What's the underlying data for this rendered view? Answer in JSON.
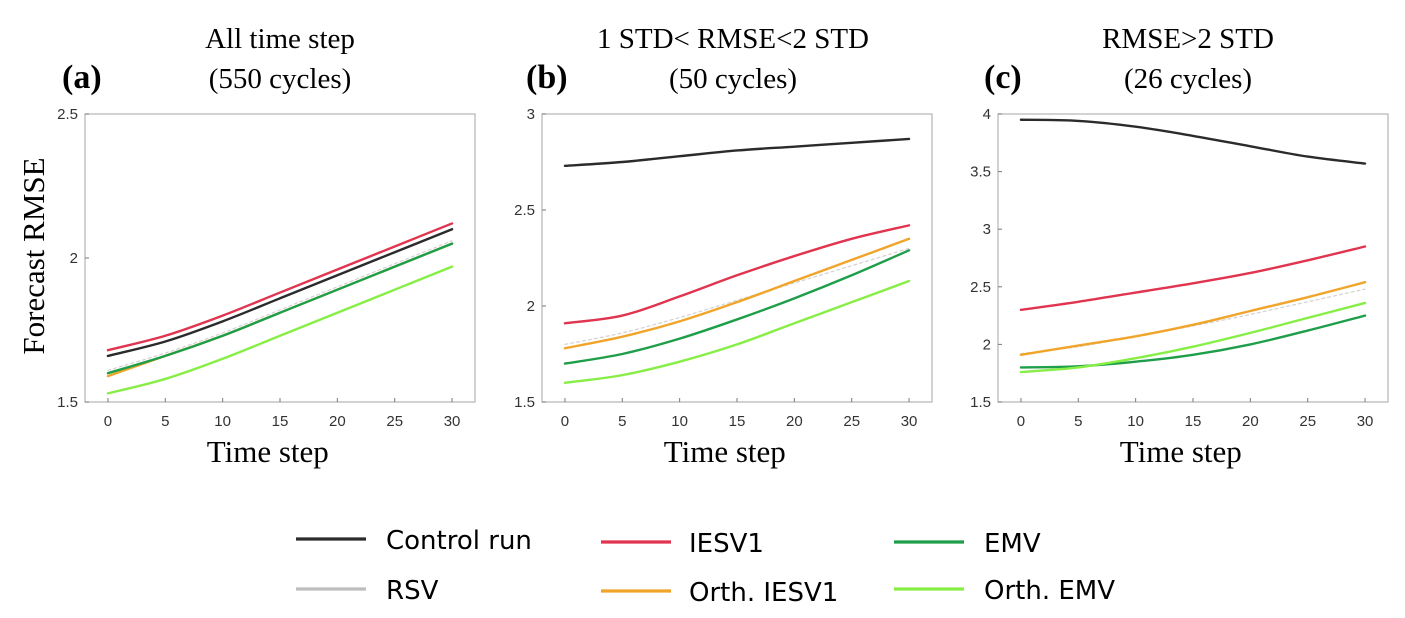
{
  "figure": {
    "ylabel": "Forecast RMSE"
  },
  "legend": {
    "entries": [
      {
        "key": "control",
        "label": "Control run",
        "color": "#2b2b2b"
      },
      {
        "key": "rsv",
        "label": "RSV",
        "color": "#bdbdbd"
      },
      {
        "key": "iesv1",
        "label": "IESV1",
        "color": "#e0344f"
      },
      {
        "key": "orth_iesv1",
        "label": "Orth. IESV1",
        "color": "#f0a52a"
      },
      {
        "key": "emv",
        "label": "EMV",
        "color": "#1f9e4a"
      },
      {
        "key": "orth_emv",
        "label": "Orth. EMV",
        "color": "#86ee45"
      }
    ]
  },
  "chart_data": [
    {
      "type": "line",
      "letter": "(a)",
      "title_line1": "All time step",
      "title_line2": "(550 cycles)",
      "xlabel": "Time step",
      "ylabel": "Forecast RMSE",
      "xlim": [
        -2,
        32
      ],
      "ylim": [
        1.5,
        2.5
      ],
      "xticks": [
        0,
        5,
        10,
        15,
        20,
        25,
        30
      ],
      "yticks": [
        1.5,
        2,
        2.5
      ],
      "ytick_labels": [
        "1.5",
        "2",
        "2.5"
      ],
      "grid": false,
      "x": [
        0,
        5,
        10,
        15,
        20,
        25,
        30
      ],
      "series": [
        {
          "key": "control",
          "name": "Control run",
          "values": [
            1.66,
            1.71,
            1.78,
            1.86,
            1.94,
            2.02,
            2.1
          ]
        },
        {
          "key": "rsv",
          "name": "RSV",
          "values": [
            1.61,
            1.67,
            1.74,
            1.82,
            1.9,
            1.98,
            2.06
          ]
        },
        {
          "key": "iesv1",
          "name": "IESV1",
          "values": [
            1.68,
            1.73,
            1.8,
            1.88,
            1.96,
            2.04,
            2.12
          ]
        },
        {
          "key": "orth_iesv1",
          "name": "Orth. IESV1",
          "values": [
            1.59,
            1.66,
            1.73,
            1.81,
            1.89,
            1.97,
            2.05
          ]
        },
        {
          "key": "emv",
          "name": "EMV",
          "values": [
            1.6,
            1.66,
            1.73,
            1.81,
            1.89,
            1.97,
            2.05
          ]
        },
        {
          "key": "orth_emv",
          "name": "Orth. EMV",
          "values": [
            1.53,
            1.58,
            1.65,
            1.73,
            1.81,
            1.89,
            1.97
          ]
        }
      ]
    },
    {
      "type": "line",
      "letter": "(b)",
      "title_line1": "1 STD< RMSE<2 STD",
      "title_line2": "(50 cycles)",
      "xlabel": "Time step",
      "ylabel": "",
      "xlim": [
        -2,
        32
      ],
      "ylim": [
        1.5,
        3
      ],
      "xticks": [
        0,
        5,
        10,
        15,
        20,
        25,
        30
      ],
      "yticks": [
        1.5,
        2,
        2.5,
        3
      ],
      "ytick_labels": [
        "1.5",
        "2",
        "2.5",
        "3"
      ],
      "grid": false,
      "x": [
        0,
        5,
        10,
        15,
        20,
        25,
        30
      ],
      "series": [
        {
          "key": "control",
          "name": "Control run",
          "values": [
            2.73,
            2.75,
            2.78,
            2.81,
            2.83,
            2.85,
            2.87
          ]
        },
        {
          "key": "rsv",
          "name": "RSV",
          "values": [
            1.8,
            1.86,
            1.94,
            2.03,
            2.12,
            2.21,
            2.3
          ]
        },
        {
          "key": "iesv1",
          "name": "IESV1",
          "values": [
            1.91,
            1.95,
            2.05,
            2.16,
            2.26,
            2.35,
            2.42
          ]
        },
        {
          "key": "orth_iesv1",
          "name": "Orth. IESV1",
          "values": [
            1.78,
            1.84,
            1.92,
            2.02,
            2.13,
            2.24,
            2.35
          ]
        },
        {
          "key": "emv",
          "name": "EMV",
          "values": [
            1.7,
            1.75,
            1.83,
            1.93,
            2.04,
            2.16,
            2.29
          ]
        },
        {
          "key": "orth_emv",
          "name": "Orth. EMV",
          "values": [
            1.6,
            1.64,
            1.71,
            1.8,
            1.91,
            2.02,
            2.13
          ]
        }
      ]
    },
    {
      "type": "line",
      "letter": "(c)",
      "title_line1": "RMSE>2 STD",
      "title_line2": "(26 cycles)",
      "xlabel": "Time step",
      "ylabel": "",
      "xlim": [
        -2,
        32
      ],
      "ylim": [
        1.5,
        4
      ],
      "xticks": [
        0,
        5,
        10,
        15,
        20,
        25,
        30
      ],
      "yticks": [
        1.5,
        2,
        2.5,
        3,
        3.5,
        4
      ],
      "ytick_labels": [
        "1.5",
        "2",
        "2.5",
        "3",
        "3.5",
        "4"
      ],
      "grid": false,
      "x": [
        0,
        5,
        10,
        15,
        20,
        25,
        30
      ],
      "series": [
        {
          "key": "control",
          "name": "Control run",
          "values": [
            3.95,
            3.94,
            3.89,
            3.81,
            3.72,
            3.63,
            3.57
          ]
        },
        {
          "key": "rsv",
          "name": "RSV",
          "values": [
            1.92,
            1.98,
            2.07,
            2.16,
            2.26,
            2.37,
            2.48
          ]
        },
        {
          "key": "iesv1",
          "name": "IESV1",
          "values": [
            2.3,
            2.37,
            2.45,
            2.53,
            2.62,
            2.73,
            2.85
          ]
        },
        {
          "key": "orth_iesv1",
          "name": "Orth. IESV1",
          "values": [
            1.91,
            1.99,
            2.07,
            2.17,
            2.29,
            2.41,
            2.54
          ]
        },
        {
          "key": "emv",
          "name": "EMV",
          "values": [
            1.8,
            1.81,
            1.85,
            1.91,
            2.0,
            2.12,
            2.25
          ]
        },
        {
          "key": "orth_emv",
          "name": "Orth. EMV",
          "values": [
            1.76,
            1.8,
            1.88,
            1.98,
            2.1,
            2.23,
            2.36
          ]
        }
      ]
    }
  ]
}
